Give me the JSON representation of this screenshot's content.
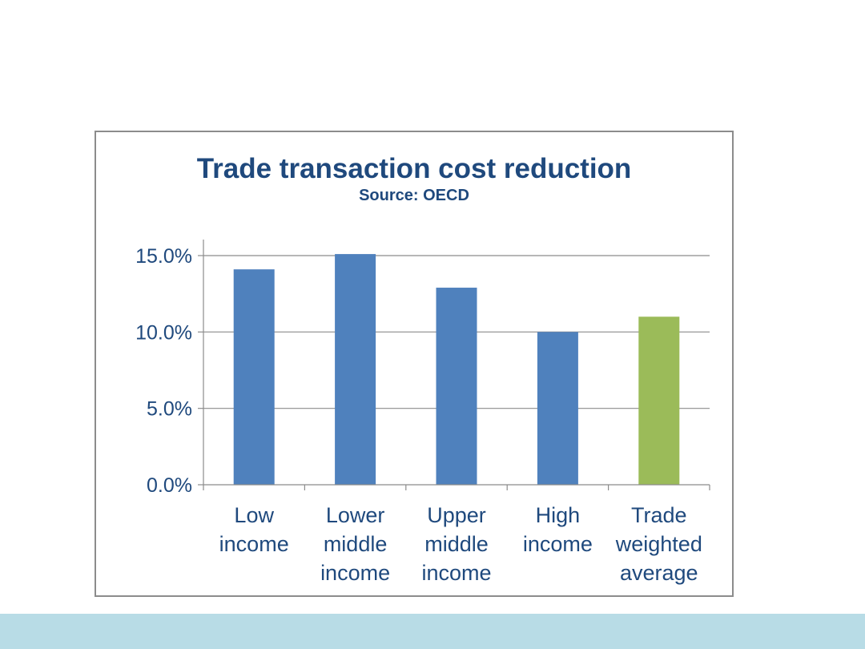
{
  "chart_data": {
    "type": "bar",
    "title": "Trade transaction cost reduction",
    "subtitle": "Source: OECD",
    "categories": [
      [
        "Low",
        "income"
      ],
      [
        "Lower",
        "middle",
        "income"
      ],
      [
        "Upper",
        "middle",
        "income"
      ],
      [
        "High",
        "income"
      ],
      [
        "Trade",
        "weighted",
        "average"
      ]
    ],
    "values": [
      14.1,
      15.1,
      12.9,
      10.0,
      11.0
    ],
    "bar_colors": [
      "#4f81bd",
      "#4f81bd",
      "#4f81bd",
      "#4f81bd",
      "#9bbb59"
    ],
    "yticks": [
      "0.0%",
      "5.0%",
      "10.0%",
      "15.0%"
    ],
    "ytick_values": [
      0,
      5,
      10,
      15
    ],
    "ylim": [
      0,
      16
    ],
    "grid": true,
    "legend": "none"
  }
}
